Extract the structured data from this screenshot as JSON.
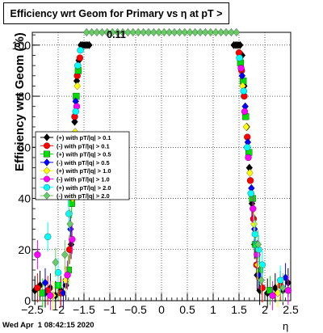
{
  "title": "Efficiency wrt Geom for Primary vs  η at pT > 0.11",
  "timestamp": "Wed Apr  1 08:42:15 2020",
  "chart_data": {
    "type": "scatter",
    "title": "Efficiency wrt Geom for Primary vs  η at pT > 0.11",
    "xlabel": "η",
    "ylabel": "Efficiency wrt Geom (%)",
    "xlim": [
      -2.5,
      2.5
    ],
    "ylim": [
      0,
      105
    ],
    "grid": true,
    "legend_position": "left-middle",
    "xticks": [
      -2.5,
      -2,
      -1.5,
      -1,
      -0.5,
      0,
      0.5,
      1,
      1.5,
      2,
      2.5
    ],
    "xtick_labels": [
      "−2.5",
      "−2",
      "−1.5",
      "−1",
      "−0.5",
      "0",
      "0.5",
      "1",
      "1.5",
      "2",
      "2.5"
    ],
    "yticks": [
      0,
      20,
      40,
      60,
      80,
      100
    ],
    "ytick_labels": [
      "0",
      "20",
      "40",
      "60",
      "80",
      "100"
    ],
    "series": [
      {
        "name": "(+) with pT/|q| > 0.1",
        "color": "#000000",
        "marker": "diamond",
        "points": [
          [
            -2.45,
            4
          ],
          [
            -2.35,
            6
          ],
          [
            -2.25,
            3
          ],
          [
            -2.15,
            5
          ],
          [
            -2.05,
            2
          ],
          [
            -1.95,
            4
          ],
          [
            -1.85,
            6
          ],
          [
            -1.75,
            22
          ],
          [
            -1.7,
            45
          ],
          [
            -1.68,
            70
          ],
          [
            -1.64,
            86
          ],
          [
            -1.6,
            94
          ],
          [
            -1.56,
            100
          ],
          [
            -1.52,
            100
          ],
          [
            -1.48,
            100
          ],
          [
            -1.44,
            100
          ],
          [
            -1.4,
            100
          ],
          [
            1.4,
            100
          ],
          [
            1.44,
            100
          ],
          [
            1.48,
            100
          ],
          [
            1.52,
            100
          ],
          [
            1.56,
            96
          ],
          [
            1.6,
            84
          ],
          [
            1.65,
            68
          ],
          [
            1.7,
            52
          ],
          [
            1.75,
            38
          ],
          [
            1.8,
            22
          ],
          [
            1.85,
            10
          ],
          [
            1.9,
            4
          ],
          [
            2.05,
            3
          ],
          [
            2.2,
            5
          ],
          [
            2.35,
            4
          ],
          [
            2.45,
            7
          ]
        ]
      },
      {
        "name": "(-) with pT/|q| > 0.1",
        "color": "#ff0000",
        "marker": "circle",
        "points": [
          [
            -2.4,
            5
          ],
          [
            -2.2,
            4
          ],
          [
            -1.95,
            3
          ],
          [
            -1.78,
            20
          ],
          [
            -1.72,
            48
          ],
          [
            -1.68,
            72
          ],
          [
            -1.63,
            88
          ],
          [
            -1.58,
            95
          ],
          [
            1.5,
            97
          ],
          [
            1.55,
            90
          ],
          [
            1.6,
            80
          ],
          [
            1.66,
            64
          ],
          [
            1.72,
            47
          ],
          [
            1.78,
            32
          ],
          [
            1.84,
            14
          ],
          [
            1.95,
            5
          ],
          [
            2.3,
            6
          ]
        ]
      },
      {
        "name": "(+) with pT/|q| > 0.5",
        "color": "#00dd00",
        "marker": "square",
        "points": [
          [
            -2.3,
            3
          ],
          [
            -2.0,
            6
          ],
          [
            -1.8,
            12
          ],
          [
            -1.74,
            38
          ],
          [
            -1.69,
            64
          ],
          [
            -1.65,
            80
          ],
          [
            -1.61,
            90
          ],
          [
            1.53,
            93
          ],
          [
            1.58,
            86
          ],
          [
            1.63,
            72
          ],
          [
            1.69,
            58
          ],
          [
            1.76,
            40
          ],
          [
            1.82,
            22
          ],
          [
            1.9,
            12
          ],
          [
            2.1,
            4
          ]
        ]
      },
      {
        "name": "(-) with pT/|q| > 0.5",
        "color": "#0000ff",
        "marker": "diamond",
        "points": [
          [
            -2.25,
            7
          ],
          [
            -1.9,
            3
          ],
          [
            -1.76,
            28
          ],
          [
            -1.7,
            55
          ],
          [
            -1.66,
            78
          ],
          [
            -1.62,
            92
          ],
          [
            1.56,
            88
          ],
          [
            1.62,
            76
          ],
          [
            1.67,
            62
          ],
          [
            1.74,
            44
          ],
          [
            1.8,
            28
          ],
          [
            1.88,
            10
          ],
          [
            2.4,
            9
          ]
        ]
      },
      {
        "name": "(+) with pT/|q| > 1.0",
        "color": "#ffff00",
        "marker": "diamond",
        "points": [
          [
            -2.1,
            2
          ],
          [
            -1.85,
            8
          ],
          [
            -1.72,
            40
          ],
          [
            -1.67,
            66
          ],
          [
            -1.63,
            84
          ],
          [
            1.57,
            84
          ],
          [
            1.64,
            68
          ],
          [
            1.71,
            50
          ],
          [
            1.79,
            30
          ],
          [
            1.86,
            14
          ],
          [
            2.25,
            3
          ]
        ]
      },
      {
        "name": "(-) with pT/|q| > 1.0",
        "color": "#ff00ff",
        "marker": "circle",
        "points": [
          [
            -2.4,
            18
          ],
          [
            -2.15,
            2
          ],
          [
            -1.82,
            10
          ],
          [
            -1.73,
            24
          ],
          [
            -1.68,
            60
          ],
          [
            -1.64,
            76
          ],
          [
            1.54,
            91
          ],
          [
            1.61,
            74
          ],
          [
            1.68,
            56
          ],
          [
            1.77,
            36
          ],
          [
            1.85,
            18
          ],
          [
            2.15,
            2
          ],
          [
            2.45,
            4
          ]
        ]
      },
      {
        "name": "(+) with pT/|q| > 2.0",
        "color": "#00ffff",
        "marker": "circle",
        "points": [
          [
            -2.2,
            25
          ],
          [
            -2.0,
            11
          ],
          [
            -1.79,
            34
          ],
          [
            -1.71,
            52
          ],
          [
            -1.66,
            74
          ],
          [
            -1.62,
            92
          ],
          [
            -1.57,
            98
          ],
          [
            1.51,
            95
          ],
          [
            1.59,
            82
          ],
          [
            1.66,
            60
          ],
          [
            1.73,
            42
          ],
          [
            1.81,
            26
          ],
          [
            1.88,
            20
          ],
          [
            1.95,
            14
          ],
          [
            2.3,
            8
          ]
        ]
      },
      {
        "name": "(-) with pT/|q| > 2.0",
        "color": "#66cc66",
        "marker": "diamond",
        "points": [
          [
            -1.45,
            105
          ],
          [
            -1.35,
            105
          ],
          [
            -1.25,
            105
          ],
          [
            -1.15,
            105
          ],
          [
            -1.05,
            105
          ],
          [
            -0.95,
            105
          ],
          [
            -0.85,
            105
          ],
          [
            -0.75,
            105
          ],
          [
            -0.65,
            105
          ],
          [
            -0.55,
            105
          ],
          [
            -0.45,
            105
          ],
          [
            -0.35,
            105
          ],
          [
            -0.25,
            105
          ],
          [
            -0.15,
            105
          ],
          [
            -0.05,
            105
          ],
          [
            0.05,
            105
          ],
          [
            0.15,
            105
          ],
          [
            0.25,
            105
          ],
          [
            0.35,
            105
          ],
          [
            0.45,
            105
          ],
          [
            0.55,
            105
          ],
          [
            0.65,
            105
          ],
          [
            0.75,
            105
          ],
          [
            0.85,
            105
          ],
          [
            0.95,
            105
          ],
          [
            1.05,
            105
          ],
          [
            1.15,
            105
          ],
          [
            1.25,
            105
          ],
          [
            1.35,
            105
          ],
          [
            1.45,
            105
          ],
          [
            -2.05,
            15
          ],
          [
            -1.87,
            18
          ],
          [
            -1.77,
            30
          ],
          [
            1.87,
            22
          ],
          [
            1.93,
            8
          ],
          [
            2.35,
            5
          ]
        ]
      }
    ]
  }
}
